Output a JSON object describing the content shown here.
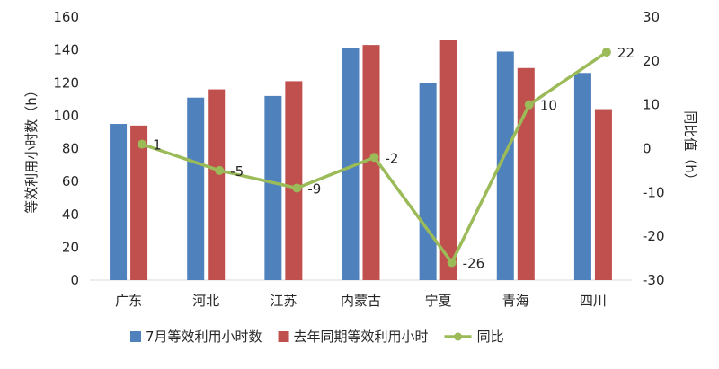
{
  "chart_data": {
    "type": "bar",
    "categories": [
      "广东",
      "河北",
      "江苏",
      "内蒙古",
      "宁夏",
      "青海",
      "四川"
    ],
    "series": [
      {
        "name": "7月等效利用小时数",
        "type": "bar",
        "axis": "left",
        "color": "#4f81bd",
        "values": [
          95,
          111,
          112,
          141,
          120,
          139,
          126
        ]
      },
      {
        "name": "去年同期等效利用小时",
        "type": "bar",
        "axis": "left",
        "color": "#c0504d",
        "values": [
          94,
          116,
          121,
          143,
          146,
          129,
          104
        ]
      },
      {
        "name": "同比",
        "type": "line",
        "axis": "right",
        "color": "#9bbb59",
        "values": [
          1,
          -5,
          -9,
          -2,
          -26,
          10,
          22
        ],
        "labels": [
          "1",
          "-5",
          "-9",
          "-2",
          "-26",
          "10",
          "22"
        ]
      }
    ],
    "ylabel": "等效利用小时数（h）",
    "y2label": "同比值（h）",
    "ylim": [
      0,
      160
    ],
    "y2lim": [
      -30,
      30
    ],
    "yticks": [
      "0",
      "20",
      "40",
      "60",
      "80",
      "100",
      "120",
      "140",
      "160"
    ],
    "y2ticks": [
      "-30",
      "-20",
      "-10",
      "0",
      "10",
      "20",
      "30"
    ],
    "grid": false,
    "legend": "bottom"
  }
}
